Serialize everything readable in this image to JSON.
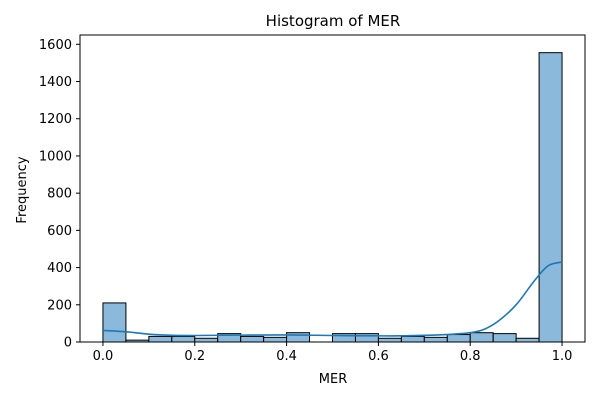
{
  "chart_data": {
    "type": "bar",
    "title": "Histogram of MER",
    "xlabel": "MER",
    "ylabel": "Frequency",
    "xlim": [
      -0.05,
      1.05
    ],
    "ylim": [
      0,
      1650
    ],
    "xticks": [
      0.0,
      0.2,
      0.4,
      0.6,
      0.8,
      1.0
    ],
    "xtick_labels": [
      "0.0",
      "0.2",
      "0.4",
      "0.6",
      "0.8",
      "1.0"
    ],
    "yticks": [
      0,
      200,
      400,
      600,
      800,
      1000,
      1200,
      1400,
      1600
    ],
    "ytick_labels": [
      "0",
      "200",
      "400",
      "600",
      "800",
      "1000",
      "1200",
      "1400",
      "1600"
    ],
    "bin_edges": [
      0.0,
      0.05,
      0.1,
      0.15,
      0.2,
      0.25,
      0.3,
      0.35,
      0.4,
      0.45,
      0.5,
      0.55,
      0.6,
      0.65,
      0.7,
      0.75,
      0.8,
      0.85,
      0.9,
      0.95,
      1.0
    ],
    "values": [
      210,
      10,
      30,
      30,
      20,
      45,
      30,
      25,
      50,
      0,
      45,
      45,
      20,
      30,
      25,
      40,
      50,
      45,
      20,
      1555
    ],
    "kde": {
      "x": [
        0.0,
        0.05,
        0.1,
        0.15,
        0.2,
        0.3,
        0.4,
        0.5,
        0.6,
        0.65,
        0.7,
        0.75,
        0.8,
        0.83,
        0.86,
        0.9,
        0.94,
        0.97,
        1.0
      ],
      "y": [
        62,
        55,
        42,
        36,
        35,
        37,
        38,
        35,
        33,
        33,
        36,
        40,
        50,
        68,
        110,
        200,
        330,
        410,
        430
      ]
    },
    "bar_color": "#8bb9dc",
    "bar_edge_color": "#000000",
    "kde_color": "#1f77b4",
    "grid": false
  }
}
